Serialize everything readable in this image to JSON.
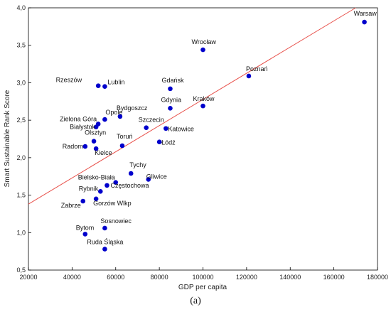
{
  "caption": "(a)",
  "chart_data": {
    "type": "scatter",
    "title": "",
    "xlabel": "GDP per capita",
    "ylabel": "Smart Sustainable Rank Score",
    "xlim": [
      20000,
      180000
    ],
    "ylim": [
      0.5,
      4.0
    ],
    "x_ticks": [
      20000,
      40000,
      60000,
      80000,
      100000,
      120000,
      140000,
      160000,
      180000
    ],
    "y_ticks": [
      "0,5",
      "1,0",
      "1,5",
      "2,0",
      "2,5",
      "3,0",
      "3,5",
      "4,0"
    ],
    "grid": false,
    "point_color": "#0000cc",
    "trend_color": "#e8504a",
    "trendline": {
      "x": [
        20000,
        170000
      ],
      "y": [
        1.38,
        4.0
      ]
    },
    "points": [
      {
        "label": "Warsaw",
        "x": 174000,
        "y": 3.81
      },
      {
        "label": "Wrocław",
        "x": 100000,
        "y": 3.44
      },
      {
        "label": "Poznań",
        "x": 121000,
        "y": 3.09
      },
      {
        "label": "Rzeszów",
        "x": 52000,
        "y": 2.96
      },
      {
        "label": "Lublin",
        "x": 55000,
        "y": 2.95
      },
      {
        "label": "Gdańsk",
        "x": 85000,
        "y": 2.92
      },
      {
        "label": "Kraków",
        "x": 100000,
        "y": 2.69
      },
      {
        "label": "Gdynia",
        "x": 85000,
        "y": 2.66
      },
      {
        "label": "Bydgoszcz",
        "x": 62000,
        "y": 2.55
      },
      {
        "label": "Opole",
        "x": 55000,
        "y": 2.51
      },
      {
        "label": "Zielona Góra",
        "x": 52000,
        "y": 2.45
      },
      {
        "label": "Białystok",
        "x": 51000,
        "y": 2.41
      },
      {
        "label": "Szczecin",
        "x": 74000,
        "y": 2.4
      },
      {
        "label": "Katowice",
        "x": 83000,
        "y": 2.39
      },
      {
        "label": "Olsztyn",
        "x": 50000,
        "y": 2.22
      },
      {
        "label": "Łódź",
        "x": 80000,
        "y": 2.21
      },
      {
        "label": "Toruń",
        "x": 63000,
        "y": 2.16
      },
      {
        "label": "Radom",
        "x": 46000,
        "y": 2.15
      },
      {
        "label": "Kielce",
        "x": 51000,
        "y": 2.12
      },
      {
        "label": "Tychy",
        "x": 67000,
        "y": 1.79
      },
      {
        "label": "Gliwice",
        "x": 75000,
        "y": 1.71
      },
      {
        "label": "Bielsko-Biała",
        "x": 60000,
        "y": 1.67
      },
      {
        "label": "Częstochowa",
        "x": 56000,
        "y": 1.63
      },
      {
        "label": "Rybnik",
        "x": 53000,
        "y": 1.55
      },
      {
        "label": "Gorzów Wlkp",
        "x": 51000,
        "y": 1.45
      },
      {
        "label": "Zabrze",
        "x": 45000,
        "y": 1.42
      },
      {
        "label": "Sosnowiec",
        "x": 55000,
        "y": 1.06
      },
      {
        "label": "Bytom",
        "x": 46000,
        "y": 0.98
      },
      {
        "label": "Ruda Śląska",
        "x": 55000,
        "y": 0.78
      }
    ]
  }
}
